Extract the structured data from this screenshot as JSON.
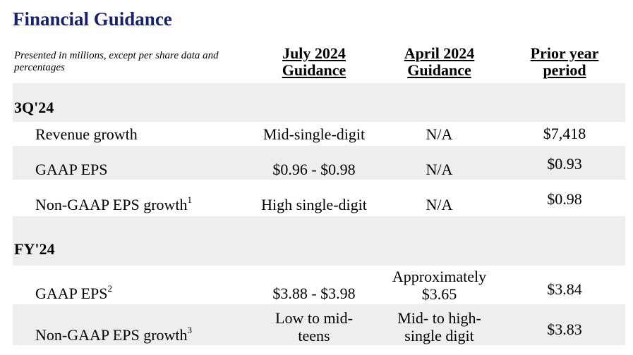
{
  "title": "Financial Guidance",
  "note": "Presented in millions, except per share data and percentages",
  "columns": {
    "july": {
      "line1": "July 2024",
      "line2": "Guidance"
    },
    "april": {
      "line1": "April 2024",
      "line2": "Guidance"
    },
    "prior": {
      "line1": "Prior year",
      "line2": "period"
    }
  },
  "sections": {
    "q3": {
      "label": "3Q'24",
      "rows": [
        {
          "label": "Revenue growth",
          "sup": "",
          "july": "Mid-single-digit",
          "april": "N/A",
          "prior": "$7,418"
        },
        {
          "label": "GAAP EPS",
          "sup": "",
          "july": "$0.96 - $0.98",
          "april": "N/A",
          "prior": "$0.93"
        },
        {
          "label": "Non-GAAP EPS growth",
          "sup": "1",
          "july": "High single-digit",
          "april": "N/A",
          "prior": "$0.98"
        }
      ]
    },
    "fy": {
      "label": "FY'24",
      "rows": [
        {
          "label": "GAAP EPS",
          "sup": "2",
          "july": "$3.88 - $3.98",
          "april_line1": "Approximately",
          "april_line2": "$3.65",
          "prior": "$3.84"
        },
        {
          "label": "Non-GAAP EPS growth",
          "sup": "3",
          "july_line1": "Low to mid-",
          "july_line2": "teens",
          "april_line1": "Mid- to high-",
          "april_line2": "single digit",
          "prior": "$3.83"
        }
      ]
    }
  }
}
